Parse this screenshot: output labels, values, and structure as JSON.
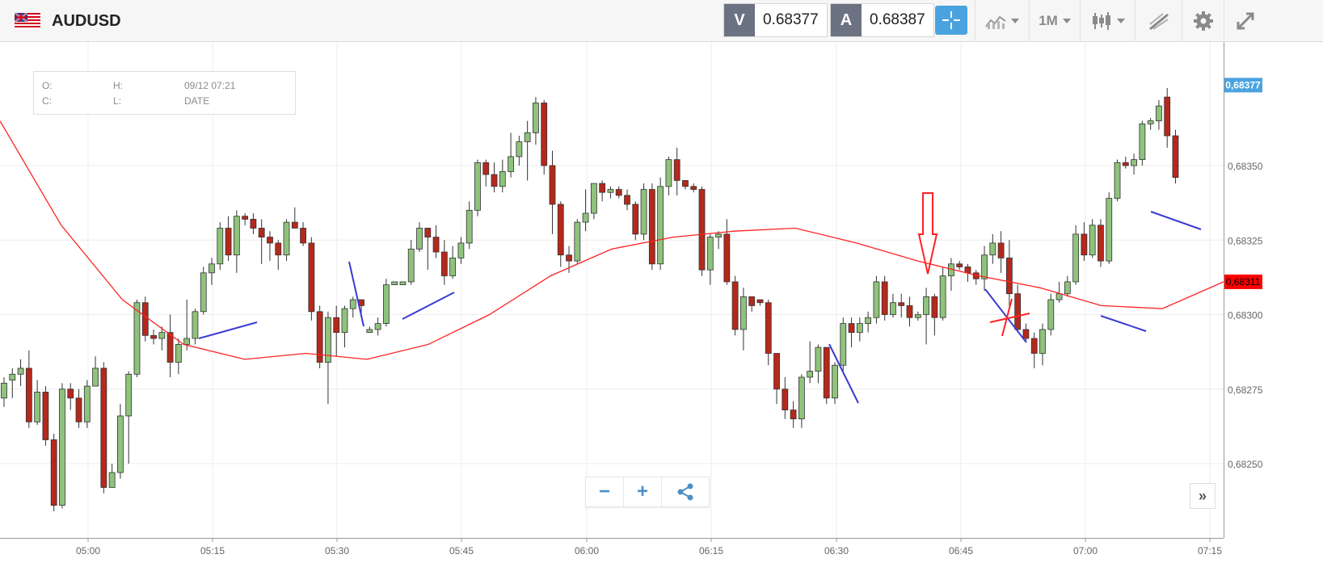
{
  "toolbar": {
    "symbol": "AUDUSD",
    "bid_tag": "V",
    "bid_value": "0.68377",
    "ask_tag": "A",
    "ask_value": "0.68387",
    "timeframe": "1M",
    "icons": [
      "flag-au-icon",
      "crosshair-icon",
      "chart-type-icon",
      "candlestick-icon",
      "drawing-tools-icon",
      "gear-icon",
      "fullscreen-icon"
    ]
  },
  "ohlc_panel": {
    "open_label": "O:",
    "high_label": "H:",
    "close_label": "C:",
    "low_label": "L:",
    "datetime": "09/12 07:21",
    "date_label": "DATE"
  },
  "chart_data": {
    "type": "candlestick",
    "title": "AUDUSD",
    "x_ticks": [
      "05:00",
      "05:15",
      "05:30",
      "05:45",
      "06:00",
      "06:15",
      "06:30",
      "06:45",
      "07:00",
      "07:15"
    ],
    "y_ticks": [
      "0,68250",
      "0,68275",
      "0,68300",
      "0,68325",
      "0,68350"
    ],
    "ylim": [
      0.6823,
      0.6839
    ],
    "current_price": "0,68377",
    "ma_price": "0,68311",
    "colors": {
      "up": "#8fc27c",
      "down": "#b5281c",
      "ma": "#ff2222",
      "trendline": "#3b3bd1",
      "grid": "#ececec",
      "current_tag": "#4aa3df",
      "ma_tag": "#ff0000"
    },
    "moving_average": [
      [
        0,
        0.68365
      ],
      [
        5,
        0.6833
      ],
      [
        10,
        0.68305
      ],
      [
        15,
        0.6829
      ],
      [
        20,
        0.68285
      ],
      [
        25,
        0.68287
      ],
      [
        30,
        0.68285
      ],
      [
        35,
        0.6829
      ],
      [
        40,
        0.683
      ],
      [
        45,
        0.68313
      ],
      [
        50,
        0.68322
      ],
      [
        55,
        0.68326
      ],
      [
        60,
        0.68328
      ],
      [
        65,
        0.68329
      ],
      [
        70,
        0.68324
      ],
      [
        75,
        0.68318
      ],
      [
        80,
        0.68313
      ],
      [
        85,
        0.68309
      ],
      [
        90,
        0.68303
      ],
      [
        95,
        0.68302
      ],
      [
        100,
        0.68311
      ]
    ],
    "candles": [
      [
        0.68272,
        0.68279,
        0.68269,
        0.68277
      ],
      [
        0.68278,
        0.68282,
        0.68272,
        0.6828
      ],
      [
        0.6828,
        0.68285,
        0.68276,
        0.68282
      ],
      [
        0.68282,
        0.68288,
        0.68262,
        0.68264
      ],
      [
        0.68264,
        0.68278,
        0.68263,
        0.68274
      ],
      [
        0.68274,
        0.68276,
        0.68256,
        0.68258
      ],
      [
        0.68258,
        0.6826,
        0.68234,
        0.68236
      ],
      [
        0.68236,
        0.68277,
        0.68235,
        0.68275
      ],
      [
        0.68275,
        0.68277,
        0.68268,
        0.68272
      ],
      [
        0.68272,
        0.68275,
        0.68262,
        0.68264
      ],
      [
        0.68264,
        0.68278,
        0.68262,
        0.68276
      ],
      [
        0.68276,
        0.68286,
        0.68276,
        0.68282
      ],
      [
        0.68282,
        0.68284,
        0.6824,
        0.68242
      ],
      [
        0.68242,
        0.6825,
        0.68242,
        0.68247
      ],
      [
        0.68247,
        0.6827,
        0.68245,
        0.68266
      ],
      [
        0.68266,
        0.68281,
        0.6825,
        0.6828
      ],
      [
        0.6828,
        0.68305,
        0.68279,
        0.68304
      ],
      [
        0.68304,
        0.68306,
        0.68291,
        0.68293
      ],
      [
        0.68293,
        0.68295,
        0.6829,
        0.68292
      ],
      [
        0.68292,
        0.68296,
        0.68288,
        0.68294
      ],
      [
        0.68294,
        0.683,
        0.68279,
        0.68284
      ],
      [
        0.68284,
        0.68292,
        0.6828,
        0.6829
      ],
      [
        0.6829,
        0.68305,
        0.68288,
        0.68292
      ],
      [
        0.68292,
        0.68302,
        0.6829,
        0.68301
      ],
      [
        0.68301,
        0.68316,
        0.683,
        0.68314
      ],
      [
        0.68314,
        0.68319,
        0.6831,
        0.68317
      ],
      [
        0.68317,
        0.68331,
        0.68315,
        0.68329
      ],
      [
        0.68329,
        0.68333,
        0.68318,
        0.6832
      ],
      [
        0.6832,
        0.68335,
        0.68314,
        0.68333
      ],
      [
        0.68333,
        0.68334,
        0.6833,
        0.68332
      ],
      [
        0.68332,
        0.68334,
        0.68327,
        0.68329
      ],
      [
        0.68329,
        0.68332,
        0.68317,
        0.68326
      ],
      [
        0.68326,
        0.68328,
        0.68318,
        0.68324
      ],
      [
        0.68324,
        0.68325,
        0.68315,
        0.6832
      ],
      [
        0.6832,
        0.68332,
        0.68318,
        0.68331
      ],
      [
        0.68331,
        0.68336,
        0.68329,
        0.68329
      ],
      [
        0.68329,
        0.68331,
        0.68323,
        0.68324
      ],
      [
        0.68324,
        0.68326,
        0.68298,
        0.68301
      ],
      [
        0.68301,
        0.68303,
        0.68282,
        0.68284
      ],
      [
        0.68284,
        0.68301,
        0.6827,
        0.68299
      ],
      [
        0.68299,
        0.68303,
        0.68286,
        0.68294
      ],
      [
        0.68294,
        0.68303,
        0.68289,
        0.68302
      ],
      [
        0.68302,
        0.68306,
        0.68299,
        0.68305
      ],
      [
        0.68305,
        0.68305,
        0.683,
        0.68303
      ],
      [
        0.68294,
        0.68296,
        0.68294,
        0.68295
      ],
      [
        0.68295,
        0.68299,
        0.68293,
        0.68297
      ],
      [
        0.68297,
        0.68312,
        0.68296,
        0.6831
      ],
      [
        0.6831,
        0.68311,
        0.6831,
        0.68311
      ],
      [
        0.6831,
        0.68311,
        0.6831,
        0.68311
      ],
      [
        0.68311,
        0.68325,
        0.6831,
        0.68322
      ],
      [
        0.68322,
        0.68331,
        0.68321,
        0.68329
      ],
      [
        0.68329,
        0.68329,
        0.68315,
        0.68326
      ],
      [
        0.68326,
        0.6833,
        0.68319,
        0.68321
      ],
      [
        0.68321,
        0.68325,
        0.6831,
        0.68313
      ],
      [
        0.68313,
        0.68323,
        0.68312,
        0.68319
      ],
      [
        0.68319,
        0.68326,
        0.68317,
        0.68324
      ],
      [
        0.68324,
        0.68338,
        0.68322,
        0.68335
      ],
      [
        0.68335,
        0.68352,
        0.68333,
        0.68351
      ],
      [
        0.68351,
        0.68352,
        0.68343,
        0.68347
      ],
      [
        0.68347,
        0.68351,
        0.68341,
        0.68343
      ],
      [
        0.68343,
        0.68352,
        0.68341,
        0.68348
      ],
      [
        0.68348,
        0.68361,
        0.68346,
        0.68353
      ],
      [
        0.68353,
        0.6836,
        0.6835,
        0.68358
      ],
      [
        0.68358,
        0.68365,
        0.68345,
        0.68361
      ],
      [
        0.68361,
        0.68373,
        0.68357,
        0.68371
      ],
      [
        0.68371,
        0.68372,
        0.68347,
        0.6835
      ],
      [
        0.6835,
        0.68355,
        0.68327,
        0.68337
      ],
      [
        0.68337,
        0.68338,
        0.68316,
        0.6832
      ],
      [
        0.6832,
        0.68323,
        0.68314,
        0.68318
      ],
      [
        0.68318,
        0.68332,
        0.68317,
        0.68331
      ],
      [
        0.68331,
        0.68342,
        0.68328,
        0.68334
      ],
      [
        0.68334,
        0.68344,
        0.68332,
        0.68344
      ],
      [
        0.68344,
        0.68345,
        0.68338,
        0.68341
      ],
      [
        0.68341,
        0.68343,
        0.68339,
        0.68342
      ],
      [
        0.68342,
        0.68343,
        0.68339,
        0.6834
      ],
      [
        0.6834,
        0.68342,
        0.68335,
        0.68337
      ],
      [
        0.68337,
        0.68338,
        0.68325,
        0.68327
      ],
      [
        0.68327,
        0.68344,
        0.68325,
        0.68342
      ],
      [
        0.68342,
        0.68344,
        0.68315,
        0.68317
      ],
      [
        0.68317,
        0.68346,
        0.68315,
        0.68343
      ],
      [
        0.68343,
        0.68353,
        0.6834,
        0.68352
      ],
      [
        0.68352,
        0.68356,
        0.6834,
        0.68345
      ],
      [
        0.68345,
        0.68345,
        0.68342,
        0.68343
      ],
      [
        0.68343,
        0.68344,
        0.68341,
        0.68342
      ],
      [
        0.68342,
        0.68343,
        0.68313,
        0.68315
      ],
      [
        0.68315,
        0.68327,
        0.6831,
        0.68326
      ],
      [
        0.68326,
        0.68328,
        0.68322,
        0.68327
      ],
      [
        0.68327,
        0.68332,
        0.6831,
        0.68311
      ],
      [
        0.68311,
        0.68313,
        0.68293,
        0.68295
      ],
      [
        0.68295,
        0.68309,
        0.68288,
        0.68306
      ],
      [
        0.68306,
        0.68306,
        0.68301,
        0.68303
      ],
      [
        0.68305,
        0.68305,
        0.68303,
        0.68304
      ],
      [
        0.68304,
        0.68305,
        0.68283,
        0.68287
      ],
      [
        0.68287,
        0.68287,
        0.6827,
        0.68275
      ],
      [
        0.68275,
        0.68279,
        0.68265,
        0.68268
      ],
      [
        0.68268,
        0.68271,
        0.68262,
        0.68265
      ],
      [
        0.68265,
        0.6828,
        0.68262,
        0.68279
      ],
      [
        0.68279,
        0.68291,
        0.68277,
        0.68281
      ],
      [
        0.68281,
        0.6829,
        0.68277,
        0.68289
      ],
      [
        0.68289,
        0.68289,
        0.6827,
        0.68272
      ],
      [
        0.68272,
        0.68284,
        0.6827,
        0.68283
      ],
      [
        0.68283,
        0.68299,
        0.68281,
        0.68297
      ],
      [
        0.68297,
        0.68299,
        0.68289,
        0.68294
      ],
      [
        0.68294,
        0.68299,
        0.68291,
        0.68297
      ],
      [
        0.68297,
        0.68301,
        0.68294,
        0.68299
      ],
      [
        0.68299,
        0.68313,
        0.68297,
        0.68311
      ],
      [
        0.68311,
        0.68313,
        0.68298,
        0.683
      ],
      [
        0.683,
        0.68307,
        0.68299,
        0.68304
      ],
      [
        0.68304,
        0.68307,
        0.68299,
        0.68303
      ],
      [
        0.68303,
        0.68306,
        0.68296,
        0.68299
      ],
      [
        0.68299,
        0.68301,
        0.68298,
        0.683
      ],
      [
        0.683,
        0.68309,
        0.6829,
        0.68306
      ],
      [
        0.68306,
        0.68307,
        0.68293,
        0.68299
      ],
      [
        0.68299,
        0.68316,
        0.68298,
        0.68313
      ],
      [
        0.68313,
        0.68319,
        0.68308,
        0.68317
      ],
      [
        0.68317,
        0.68318,
        0.68315,
        0.68316
      ],
      [
        0.68316,
        0.68317,
        0.68311,
        0.68314
      ],
      [
        0.68314,
        0.68315,
        0.6831,
        0.68312
      ],
      [
        0.68312,
        0.68323,
        0.68308,
        0.6832
      ],
      [
        0.6832,
        0.68327,
        0.68317,
        0.68324
      ],
      [
        0.68324,
        0.68328,
        0.68314,
        0.68319
      ],
      [
        0.68319,
        0.68325,
        0.68303,
        0.68307
      ],
      [
        0.68307,
        0.6831,
        0.68294,
        0.68295
      ],
      [
        0.68295,
        0.68297,
        0.68291,
        0.68292
      ],
      [
        0.68292,
        0.68294,
        0.68282,
        0.68287
      ],
      [
        0.68287,
        0.68297,
        0.68283,
        0.68295
      ],
      [
        0.68295,
        0.68307,
        0.68293,
        0.68305
      ],
      [
        0.68305,
        0.68311,
        0.68304,
        0.68307
      ],
      [
        0.68307,
        0.68313,
        0.68306,
        0.68311
      ],
      [
        0.68311,
        0.6833,
        0.6831,
        0.68327
      ],
      [
        0.68327,
        0.68331,
        0.68318,
        0.6832
      ],
      [
        0.6832,
        0.68332,
        0.68319,
        0.6833
      ],
      [
        0.6833,
        0.68332,
        0.68316,
        0.68318
      ],
      [
        0.68318,
        0.68341,
        0.68317,
        0.68339
      ],
      [
        0.68339,
        0.68352,
        0.68338,
        0.68351
      ],
      [
        0.68351,
        0.68353,
        0.68349,
        0.6835
      ],
      [
        0.6835,
        0.68354,
        0.68347,
        0.68352
      ],
      [
        0.68352,
        0.68365,
        0.6835,
        0.68364
      ],
      [
        0.68364,
        0.68366,
        0.68362,
        0.68365
      ],
      [
        0.68365,
        0.68372,
        0.68362,
        0.6837
      ],
      [
        0.68373,
        0.68376,
        0.68356,
        0.6836
      ],
      [
        0.6836,
        0.68362,
        0.68344,
        0.68346
      ]
    ]
  }
}
